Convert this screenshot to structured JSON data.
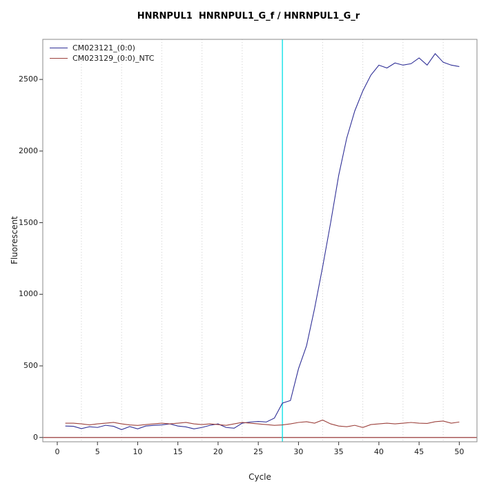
{
  "chart_data": {
    "type": "line",
    "title": "HNRNPUL1  HNRNPUL1_G_f / HNRNPUL1_G_r",
    "xlabel": "Cycle",
    "ylabel": "Fluorescent",
    "xlim": [
      -1.8,
      52.2
    ],
    "ylim": [
      -30,
      2780
    ],
    "x_ticks": [
      0,
      5,
      10,
      15,
      20,
      25,
      30,
      35,
      40,
      45,
      50
    ],
    "y_ticks": [
      0,
      500,
      1000,
      1500,
      2000,
      2500
    ],
    "grid": true,
    "grid_x": [
      3,
      8,
      13,
      18,
      23,
      28,
      33,
      38,
      43,
      48
    ],
    "grid_color": "#cccccc",
    "legend_position": "top-left",
    "threshold_line": {
      "y": 0,
      "color": "#8b2222"
    },
    "marker_vline": {
      "x": 28,
      "color": "#00e0e6"
    },
    "x": [
      1,
      2,
      3,
      4,
      5,
      6,
      7,
      8,
      9,
      10,
      11,
      12,
      13,
      14,
      15,
      16,
      17,
      18,
      19,
      20,
      21,
      22,
      23,
      24,
      25,
      26,
      27,
      28,
      29,
      30,
      31,
      32,
      33,
      34,
      35,
      36,
      37,
      38,
      39,
      40,
      41,
      42,
      43,
      44,
      45,
      46,
      47,
      48,
      49,
      50
    ],
    "series": [
      {
        "name": "CM023121_(0:0)",
        "color": "#2e2e96",
        "values": [
          80,
          78,
          62,
          75,
          70,
          85,
          78,
          55,
          76,
          60,
          80,
          85,
          88,
          95,
          80,
          74,
          60,
          70,
          85,
          95,
          70,
          65,
          100,
          108,
          112,
          108,
          135,
          240,
          258,
          480,
          640,
          900,
          1190,
          1500,
          1830,
          2090,
          2280,
          2420,
          2530,
          2600,
          2580,
          2615,
          2600,
          2610,
          2650,
          2600,
          2680,
          2620,
          2600,
          2590
        ]
      },
      {
        "name": "CM023129_(0:0)_NTC",
        "color": "#9c413c",
        "values": [
          100,
          100,
          95,
          88,
          95,
          100,
          105,
          95,
          88,
          84,
          90,
          95,
          100,
          95,
          100,
          105,
          95,
          90,
          95,
          90,
          85,
          95,
          105,
          100,
          95,
          90,
          85,
          88,
          95,
          105,
          110,
          100,
          122,
          95,
          80,
          75,
          85,
          70,
          90,
          95,
          100,
          95,
          100,
          105,
          100,
          98,
          110,
          115,
          100,
          108
        ]
      }
    ]
  }
}
